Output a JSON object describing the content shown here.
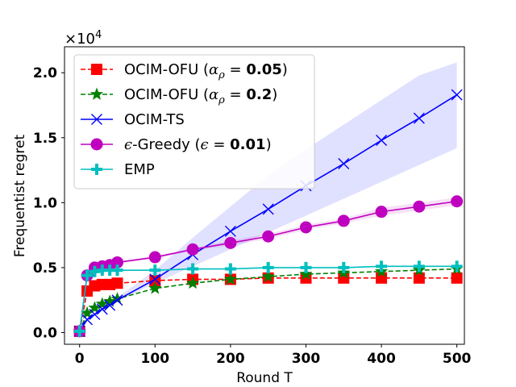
{
  "chart_data": {
    "type": "line",
    "xlabel": "Round T",
    "ylabel": "Frequentist regret",
    "xlim": [
      -20,
      510
    ],
    "ylim": [
      -0.09,
      2.2
    ],
    "xticks": [
      0,
      100,
      200,
      300,
      400,
      500
    ],
    "yticks": [
      0.0,
      0.5,
      1.0,
      1.5,
      2.0
    ],
    "ytick_labels": [
      "0.0",
      "0.5",
      "1.0",
      "1.5",
      "2.0"
    ],
    "y_multiplier_base": "×10",
    "y_multiplier_exp": "4",
    "legend_position": "top-left",
    "series": [
      {
        "name": "OCIM-OFU (αρ = 0.05)",
        "legend": {
          "pre": "OCIM-OFU (",
          "sym": "α",
          "sub": "ρ",
          "post": " = 0.05)"
        },
        "color": "#ff0000",
        "dash": "dashed",
        "marker": "square",
        "x": [
          0,
          10,
          20,
          30,
          40,
          50,
          100,
          150,
          200,
          250,
          300,
          350,
          400,
          450,
          500
        ],
        "y": [
          0.01,
          0.32,
          0.36,
          0.37,
          0.37,
          0.38,
          0.4,
          0.41,
          0.41,
          0.42,
          0.42,
          0.42,
          0.42,
          0.42,
          0.42
        ]
      },
      {
        "name": "OCIM-OFU (αρ = 0.2)",
        "legend": {
          "pre": "OCIM-OFU (",
          "sym": "α",
          "sub": "ρ",
          "post": " = 0.2)"
        },
        "color": "#008000",
        "dash": "dashed",
        "marker": "star",
        "x": [
          0,
          10,
          20,
          30,
          40,
          50,
          100,
          150,
          200,
          250,
          300,
          350,
          400,
          450,
          500
        ],
        "y": [
          0.01,
          0.15,
          0.19,
          0.22,
          0.24,
          0.26,
          0.34,
          0.38,
          0.41,
          0.43,
          0.45,
          0.46,
          0.47,
          0.48,
          0.49
        ]
      },
      {
        "name": "OCIM-TS",
        "legend": {
          "pre": "OCIM-TS"
        },
        "color": "#0000ff",
        "dash": "solid",
        "marker": "x",
        "x": [
          0,
          10,
          20,
          30,
          40,
          50,
          100,
          150,
          200,
          250,
          300,
          350,
          400,
          450,
          500
        ],
        "y": [
          0.01,
          0.1,
          0.14,
          0.18,
          0.21,
          0.25,
          0.41,
          0.6,
          0.78,
          0.95,
          1.13,
          1.3,
          1.48,
          1.65,
          1.83
        ],
        "band_lower": [
          0.01,
          0.1,
          0.13,
          0.17,
          0.2,
          0.24,
          0.38,
          0.51,
          0.64,
          0.77,
          0.9,
          1.03,
          1.16,
          1.29,
          1.42
        ],
        "band_upper": [
          0.01,
          0.11,
          0.15,
          0.19,
          0.23,
          0.27,
          0.48,
          0.73,
          0.97,
          1.21,
          1.41,
          1.6,
          1.79,
          1.98,
          2.08
        ],
        "band_color": "#0000ff"
      },
      {
        "name": "ϵ-Greedy (ϵ = 0.01)",
        "legend": {
          "pre": "",
          "sym": "ϵ",
          "mid": "-Greedy (",
          "sym2": "ϵ",
          "post": " = 0.01)"
        },
        "color": "#bf00bf",
        "dash": "solid",
        "marker": "circle",
        "x": [
          0,
          10,
          20,
          30,
          40,
          50,
          100,
          150,
          200,
          250,
          300,
          350,
          400,
          450,
          500
        ],
        "y": [
          0.01,
          0.44,
          0.5,
          0.51,
          0.52,
          0.54,
          0.58,
          0.64,
          0.69,
          0.74,
          0.81,
          0.86,
          0.93,
          0.97,
          1.01
        ],
        "band_lower": [
          0.01,
          0.43,
          0.49,
          0.5,
          0.51,
          0.53,
          0.57,
          0.63,
          0.67,
          0.72,
          0.79,
          0.84,
          0.9,
          0.94,
          0.98
        ],
        "band_upper": [
          0.01,
          0.45,
          0.51,
          0.52,
          0.53,
          0.55,
          0.59,
          0.65,
          0.71,
          0.76,
          0.83,
          0.88,
          0.96,
          1.0,
          1.04
        ],
        "band_color": "#bf00bf"
      },
      {
        "name": "EMP",
        "legend": {
          "pre": "EMP"
        },
        "color": "#00bfbf",
        "dash": "solid",
        "marker": "plus",
        "x": [
          0,
          10,
          20,
          30,
          40,
          50,
          100,
          150,
          200,
          250,
          300,
          350,
          400,
          450,
          500
        ],
        "y": [
          0.01,
          0.44,
          0.47,
          0.48,
          0.48,
          0.48,
          0.48,
          0.49,
          0.49,
          0.5,
          0.5,
          0.5,
          0.51,
          0.51,
          0.51
        ]
      }
    ]
  }
}
